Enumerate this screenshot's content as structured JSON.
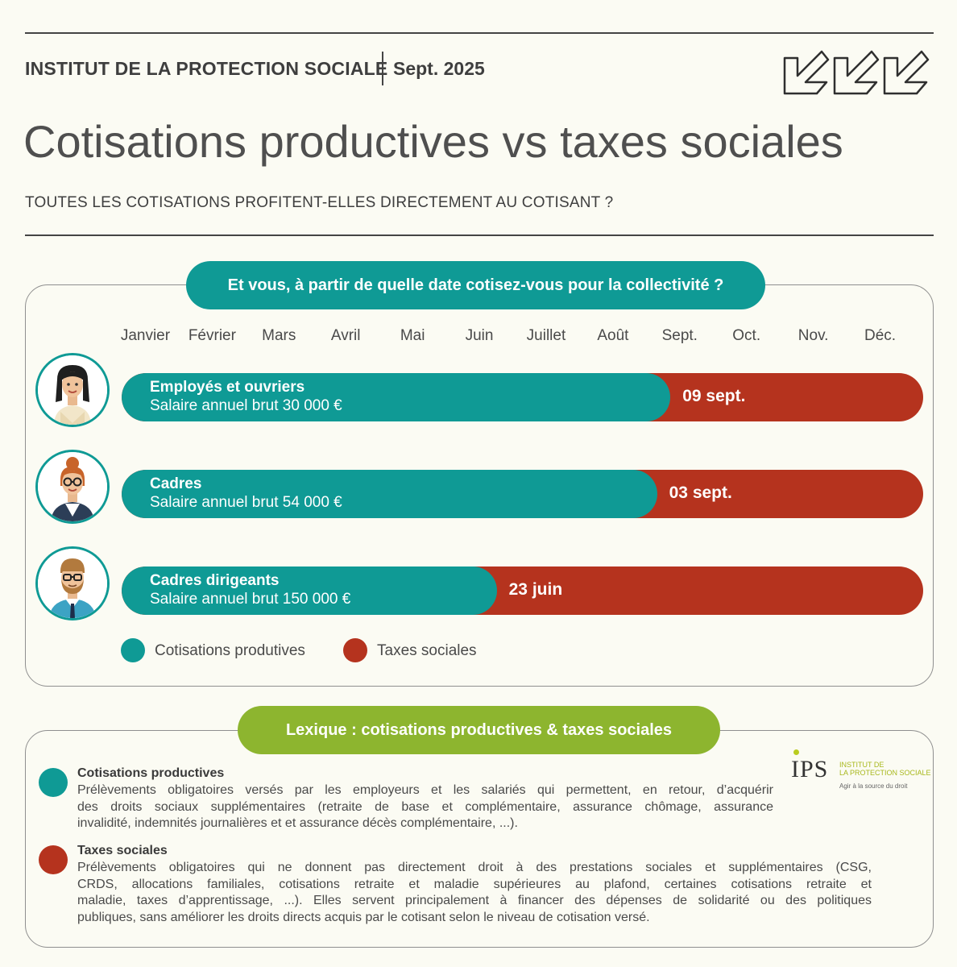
{
  "header": {
    "organization": "INSTITUT DE LA PROTECTION SOCIALE",
    "date": "Sept. 2025",
    "title": "Cotisations productives vs taxes sociales",
    "subtitle": "TOUTES LES COTISATIONS PROFITENT-ELLES DIRECTEMENT AU COTISANT ?"
  },
  "chart_section": {
    "heading": "Et vous, à partir de quelle date cotisez-vous pour la collectivité ?"
  },
  "colors": {
    "productive": "#0f9a95",
    "social_tax": "#b5331e",
    "lexique_green": "#8db52f"
  },
  "chart_data": {
    "type": "bar",
    "orientation": "horizontal-stacked",
    "x_axis_ticks": [
      "Janvier",
      "Février",
      "Mars",
      "Avril",
      "Mai",
      "Juin",
      "Juillet",
      "Août",
      "Sept.",
      "Oct.",
      "Nov.",
      "Déc."
    ],
    "xlim_months": [
      0,
      12
    ],
    "categories": [
      {
        "name": "Employés et ouvriers",
        "salary": "Salaire annuel brut 30 000 €",
        "switch_date": "09 sept.",
        "switch_month": 8.3
      },
      {
        "name": "Cadres",
        "salary": "Salaire annuel brut 54 000 €",
        "switch_date": "03 sept.",
        "switch_month": 8.1
      },
      {
        "name": "Cadres dirigeants",
        "salary": "Salaire annuel brut 150 000 €",
        "switch_date": "23 juin",
        "switch_month": 5.7
      }
    ],
    "legend": [
      {
        "label": "Cotisations produtives",
        "color": "#0f9a95"
      },
      {
        "label": "Taxes sociales",
        "color": "#b5331e"
      }
    ]
  },
  "lexique": {
    "heading": "Lexique : cotisations productives & taxes sociales",
    "items": [
      {
        "title": "Cotisations productives",
        "lines": [
          "Prélèvements obligatoires versés par les employeurs et les salariés qui permettent, en retour, d’acquérir",
          "des droits sociaux supplémentaires (retraite de base et complémentaire, assurance chômage, assurance",
          "invalidité, indemnités journalières et et assurance décès complémentaire, ...)."
        ]
      },
      {
        "title": "Taxes sociales",
        "lines": [
          "Prélèvements obligatoires qui ne donnent pas directement droit à des prestations sociales et supplémentaires (CSG,",
          "CRDS, allocations familiales, cotisations retraite et maladie supérieures au plafond, certaines cotisations retraite et",
          "maladie, taxes d’apprentissage, ...). Elles servent principalement à financer des dépenses de solidarité ou des politiques",
          "publiques, sans améliorer les droits directs acquis par le cotisant selon le niveau de cotisation versé."
        ]
      }
    ]
  },
  "logo": {
    "name": "IPS",
    "line1": "INSTITUT DE",
    "line2": "LA PROTECTION SOCIALE",
    "tagline": "Agir à la source du droit"
  }
}
